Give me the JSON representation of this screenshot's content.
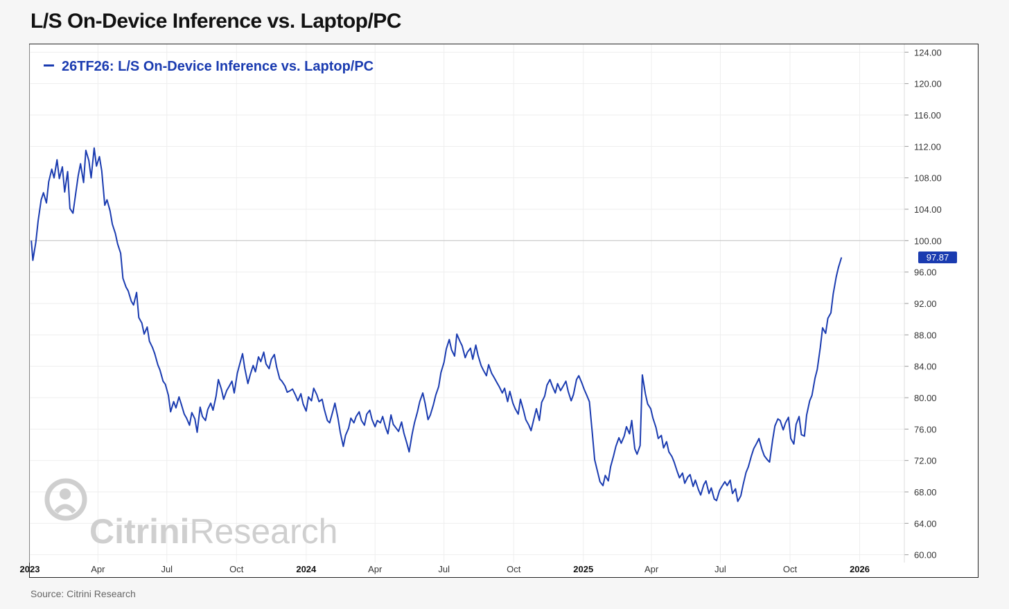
{
  "page": {
    "title": "L/S On-Device Inference vs. Laptop/PC",
    "source": "Source: Citrini Research"
  },
  "colors": {
    "series": "#1a3bb0",
    "grid": "#eeeeee",
    "reference_line": "#c8c8c8",
    "watermark": "#cfcfcf",
    "last_value_badge": "#1a3bb0"
  },
  "watermark": {
    "logo": "citrini-research-logo-icon",
    "word_bold": "Citrini",
    "word_light": "Research"
  },
  "chart_data": {
    "type": "line",
    "title": "L/S On-Device Inference vs. Laptop/PC",
    "legend": {
      "position": "top-left",
      "label": "26TF26: L/S On-Device Inference vs. Laptop/PC"
    },
    "xlabel": "",
    "ylabel": "",
    "ylim": [
      59,
      125
    ],
    "xlim": [
      "2023-01-01",
      "2026-03-01"
    ],
    "y_ticks": [
      "124.00",
      "120.00",
      "116.00",
      "112.00",
      "108.00",
      "104.00",
      "100.00",
      "96.00",
      "92.00",
      "88.00",
      "84.00",
      "80.00",
      "76.00",
      "72.00",
      "68.00",
      "64.00",
      "60.00"
    ],
    "y_tick_values": [
      124,
      120,
      116,
      112,
      108,
      104,
      100,
      96,
      92,
      88,
      84,
      80,
      76,
      72,
      68,
      64,
      60
    ],
    "x_ticks": [
      {
        "label": "2023",
        "date": "2023-01-01",
        "bold": true
      },
      {
        "label": "Apr",
        "date": "2023-04-01",
        "bold": false
      },
      {
        "label": "Jul",
        "date": "2023-07-01",
        "bold": false
      },
      {
        "label": "Oct",
        "date": "2023-10-01",
        "bold": false
      },
      {
        "label": "2024",
        "date": "2024-01-01",
        "bold": true
      },
      {
        "label": "Apr",
        "date": "2024-04-01",
        "bold": false
      },
      {
        "label": "Jul",
        "date": "2024-07-01",
        "bold": false
      },
      {
        "label": "Oct",
        "date": "2024-10-01",
        "bold": false
      },
      {
        "label": "2025",
        "date": "2025-01-01",
        "bold": true
      },
      {
        "label": "Apr",
        "date": "2025-04-01",
        "bold": false
      },
      {
        "label": "Jul",
        "date": "2025-07-01",
        "bold": false
      },
      {
        "label": "Oct",
        "date": "2025-10-01",
        "bold": false
      },
      {
        "label": "2026",
        "date": "2026-01-01",
        "bold": true
      }
    ],
    "reference_line": 100,
    "last_value": 97.87,
    "last_value_label": "97.87",
    "series": [
      {
        "name": "26TF26: L/S On-Device Inference vs. Laptop/PC",
        "x": [
          "2023-01-03",
          "2023-01-05",
          "2023-01-09",
          "2023-01-12",
          "2023-01-16",
          "2023-01-19",
          "2023-01-23",
          "2023-01-26",
          "2023-01-30",
          "2023-02-02",
          "2023-02-06",
          "2023-02-09",
          "2023-02-13",
          "2023-02-16",
          "2023-02-20",
          "2023-02-23",
          "2023-02-27",
          "2023-03-02",
          "2023-03-06",
          "2023-03-09",
          "2023-03-13",
          "2023-03-16",
          "2023-03-20",
          "2023-03-23",
          "2023-03-27",
          "2023-03-30",
          "2023-04-03",
          "2023-04-06",
          "2023-04-10",
          "2023-04-13",
          "2023-04-17",
          "2023-04-20",
          "2023-04-24",
          "2023-04-27",
          "2023-05-01",
          "2023-05-04",
          "2023-05-08",
          "2023-05-11",
          "2023-05-15",
          "2023-05-18",
          "2023-05-22",
          "2023-05-25",
          "2023-05-29",
          "2023-06-01",
          "2023-06-05",
          "2023-06-08",
          "2023-06-12",
          "2023-06-15",
          "2023-06-19",
          "2023-06-22",
          "2023-06-26",
          "2023-06-29",
          "2023-07-03",
          "2023-07-06",
          "2023-07-10",
          "2023-07-13",
          "2023-07-17",
          "2023-07-20",
          "2023-07-24",
          "2023-07-27",
          "2023-07-31",
          "2023-08-03",
          "2023-08-07",
          "2023-08-10",
          "2023-08-14",
          "2023-08-17",
          "2023-08-21",
          "2023-08-24",
          "2023-08-28",
          "2023-08-31",
          "2023-09-04",
          "2023-09-07",
          "2023-09-11",
          "2023-09-14",
          "2023-09-18",
          "2023-09-21",
          "2023-09-25",
          "2023-09-28",
          "2023-10-02",
          "2023-10-05",
          "2023-10-09",
          "2023-10-12",
          "2023-10-16",
          "2023-10-19",
          "2023-10-23",
          "2023-10-26",
          "2023-10-30",
          "2023-11-02",
          "2023-11-06",
          "2023-11-09",
          "2023-11-13",
          "2023-11-16",
          "2023-11-20",
          "2023-11-23",
          "2023-11-27",
          "2023-11-30",
          "2023-12-04",
          "2023-12-07",
          "2023-12-11",
          "2023-12-14",
          "2023-12-18",
          "2023-12-21",
          "2023-12-25",
          "2023-12-28",
          "2024-01-01",
          "2024-01-04",
          "2024-01-08",
          "2024-01-11",
          "2024-01-15",
          "2024-01-18",
          "2024-01-22",
          "2024-01-25",
          "2024-01-29",
          "2024-02-01",
          "2024-02-05",
          "2024-02-08",
          "2024-02-12",
          "2024-02-15",
          "2024-02-19",
          "2024-02-22",
          "2024-02-26",
          "2024-02-29",
          "2024-03-04",
          "2024-03-07",
          "2024-03-11",
          "2024-03-14",
          "2024-03-18",
          "2024-03-21",
          "2024-03-25",
          "2024-03-28",
          "2024-04-01",
          "2024-04-04",
          "2024-04-08",
          "2024-04-11",
          "2024-04-15",
          "2024-04-18",
          "2024-04-22",
          "2024-04-25",
          "2024-04-29",
          "2024-05-02",
          "2024-05-06",
          "2024-05-09",
          "2024-05-13",
          "2024-05-16",
          "2024-05-20",
          "2024-05-23",
          "2024-05-27",
          "2024-05-30",
          "2024-06-03",
          "2024-06-06",
          "2024-06-10",
          "2024-06-13",
          "2024-06-17",
          "2024-06-20",
          "2024-06-24",
          "2024-06-27",
          "2024-07-01",
          "2024-07-04",
          "2024-07-08",
          "2024-07-11",
          "2024-07-15",
          "2024-07-18",
          "2024-07-22",
          "2024-07-25",
          "2024-07-29",
          "2024-08-01",
          "2024-08-05",
          "2024-08-08",
          "2024-08-12",
          "2024-08-15",
          "2024-08-19",
          "2024-08-22",
          "2024-08-26",
          "2024-08-29",
          "2024-09-02",
          "2024-09-05",
          "2024-09-09",
          "2024-09-12",
          "2024-09-16",
          "2024-09-19",
          "2024-09-23",
          "2024-09-26",
          "2024-09-30",
          "2024-10-03",
          "2024-10-07",
          "2024-10-10",
          "2024-10-14",
          "2024-10-17",
          "2024-10-21",
          "2024-10-24",
          "2024-10-28",
          "2024-10-31",
          "2024-11-04",
          "2024-11-07",
          "2024-11-11",
          "2024-11-14",
          "2024-11-18",
          "2024-11-21",
          "2024-11-25",
          "2024-11-28",
          "2024-12-02",
          "2024-12-05",
          "2024-12-09",
          "2024-12-12",
          "2024-12-16",
          "2024-12-19",
          "2024-12-23",
          "2024-12-26",
          "2024-12-30",
          "2025-01-02",
          "2025-01-06",
          "2025-01-09",
          "2025-01-13",
          "2025-01-16",
          "2025-01-20",
          "2025-01-23",
          "2025-01-27",
          "2025-01-30",
          "2025-02-03",
          "2025-02-06",
          "2025-02-10",
          "2025-02-13",
          "2025-02-17",
          "2025-02-20",
          "2025-02-24",
          "2025-02-27",
          "2025-03-03",
          "2025-03-06",
          "2025-03-10",
          "2025-03-13",
          "2025-03-17",
          "2025-03-20",
          "2025-03-24",
          "2025-03-27",
          "2025-03-31",
          "2025-04-03",
          "2025-04-07",
          "2025-04-10",
          "2025-04-14",
          "2025-04-17",
          "2025-04-21",
          "2025-04-24",
          "2025-04-28",
          "2025-05-01",
          "2025-05-05",
          "2025-05-08",
          "2025-05-12",
          "2025-05-15",
          "2025-05-19",
          "2025-05-22",
          "2025-05-26",
          "2025-05-29",
          "2025-06-02",
          "2025-06-05",
          "2025-06-09",
          "2025-06-12",
          "2025-06-16",
          "2025-06-19",
          "2025-06-23",
          "2025-06-26",
          "2025-06-30",
          "2025-07-03",
          "2025-07-07",
          "2025-07-10",
          "2025-07-14",
          "2025-07-17",
          "2025-07-21",
          "2025-07-24",
          "2025-07-28",
          "2025-07-31",
          "2025-08-04",
          "2025-08-07",
          "2025-08-11",
          "2025-08-14",
          "2025-08-18",
          "2025-08-21",
          "2025-08-25",
          "2025-08-28",
          "2025-09-01",
          "2025-09-04",
          "2025-09-08",
          "2025-09-11",
          "2025-09-15",
          "2025-09-18",
          "2025-09-22",
          "2025-09-25",
          "2025-09-29",
          "2025-10-02",
          "2025-10-06",
          "2025-10-09",
          "2025-10-13",
          "2025-10-16",
          "2025-10-20",
          "2025-10-23",
          "2025-10-27",
          "2025-10-30",
          "2025-11-03",
          "2025-11-06",
          "2025-11-10",
          "2025-11-13",
          "2025-11-17",
          "2025-11-20",
          "2025-11-24",
          "2025-11-27",
          "2025-12-01",
          "2025-12-04",
          "2025-12-08"
        ],
        "values": [
          100.0,
          97.5,
          99.8,
          102.5,
          105.2,
          106.1,
          104.8,
          107.5,
          109.1,
          108.0,
          110.3,
          107.9,
          109.4,
          106.2,
          108.8,
          104.1,
          103.5,
          105.6,
          108.3,
          109.8,
          107.4,
          111.5,
          110.2,
          108.0,
          111.8,
          109.5,
          110.7,
          108.9,
          104.5,
          105.2,
          103.8,
          102.1,
          100.9,
          99.6,
          98.4,
          95.2,
          94.1,
          93.6,
          92.3,
          91.8,
          93.4,
          90.2,
          89.5,
          88.1,
          89.0,
          87.2,
          86.4,
          85.6,
          84.2,
          83.5,
          82.1,
          81.7,
          80.3,
          78.2,
          79.5,
          78.7,
          80.1,
          79.2,
          77.9,
          77.4,
          76.5,
          78.1,
          77.3,
          75.6,
          78.8,
          77.6,
          77.1,
          78.5,
          79.3,
          78.4,
          80.2,
          82.3,
          81.1,
          79.8,
          80.9,
          81.4,
          82.1,
          80.6,
          83.1,
          84.2,
          85.6,
          83.7,
          81.8,
          82.9,
          84.1,
          83.3,
          85.2,
          84.6,
          85.8,
          84.3,
          83.7,
          84.9,
          85.5,
          83.9,
          82.4,
          82.1,
          81.5,
          80.7,
          80.9,
          81.1,
          80.3,
          79.6,
          80.5,
          79.2,
          78.3,
          80.1,
          79.6,
          81.2,
          80.4,
          79.5,
          79.8,
          78.5,
          77.1,
          76.8,
          78.2,
          79.3,
          77.4,
          75.6,
          73.8,
          75.2,
          76.1,
          77.4,
          76.8,
          77.6,
          78.2,
          77.1,
          76.5,
          77.9,
          78.4,
          77.2,
          76.3,
          77.1,
          76.8,
          77.6,
          76.2,
          75.4,
          77.8,
          76.6,
          76.1,
          75.7,
          76.9,
          75.5,
          74.2,
          73.1,
          75.4,
          76.8,
          78.2,
          79.5,
          80.6,
          79.3,
          77.2,
          77.8,
          79.1,
          80.3,
          81.4,
          83.2,
          84.5,
          86.2,
          87.4,
          86.1,
          85.3,
          88.1,
          87.2,
          86.6,
          85.1,
          85.8,
          86.3,
          84.9,
          86.7,
          85.4,
          84.1,
          83.5,
          82.8,
          84.2,
          83.1,
          82.6,
          81.9,
          81.4,
          80.6,
          81.2,
          79.5,
          80.8,
          79.3,
          78.6,
          77.9,
          79.8,
          78.4,
          77.2,
          76.5,
          75.8,
          77.4,
          78.6,
          77.1,
          79.4,
          80.2,
          81.6,
          82.3,
          81.5,
          80.6,
          81.8,
          80.9,
          81.4,
          82.1,
          80.8,
          79.6,
          80.4,
          82.3,
          82.8,
          81.9,
          81.1,
          80.2,
          79.5,
          75.4,
          72.1,
          70.5,
          69.3,
          68.8,
          70.1,
          69.4,
          71.2,
          72.6,
          73.8,
          74.9,
          74.2,
          75.1,
          76.3,
          75.4,
          77.1,
          73.5,
          72.8,
          73.9,
          82.9,
          80.5,
          79.2,
          78.6,
          77.4,
          76.2,
          74.8,
          75.2,
          73.6,
          74.4,
          73.1,
          72.5,
          71.8,
          70.6,
          69.8,
          70.4,
          69.1,
          69.9,
          70.2,
          68.7,
          69.5,
          68.3,
          67.6,
          68.9,
          69.4,
          67.8,
          68.5,
          67.1,
          66.9,
          68.2,
          68.7,
          69.3,
          68.8,
          69.5,
          67.8,
          68.4,
          66.8,
          67.5,
          68.9,
          70.5,
          71.2,
          72.6,
          73.5,
          74.2,
          74.8,
          73.4,
          72.6,
          72.1,
          71.8,
          74.6,
          76.4,
          77.3,
          77.1,
          75.9,
          76.8,
          77.5,
          74.8,
          74.1,
          76.6,
          77.6,
          75.3,
          75.1,
          77.8,
          79.6,
          80.3,
          82.5,
          83.6,
          86.4,
          88.9,
          88.2,
          90.1,
          90.8,
          93.2,
          95.4,
          96.6,
          97.87
        ]
      }
    ]
  }
}
